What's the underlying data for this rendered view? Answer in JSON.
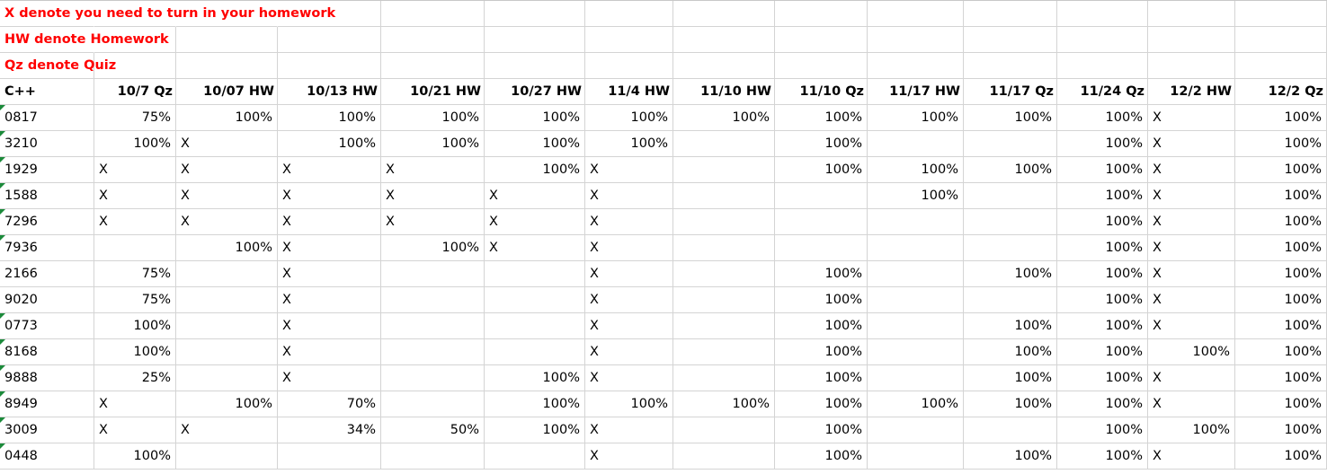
{
  "notes": [
    "X denote you need to turn in your homework",
    "HW denote Homework",
    "Qz denote Quiz"
  ],
  "header": [
    "C++",
    "10/7 Qz",
    "10/07 HW",
    "10/13 HW",
    "10/21 HW",
    "10/27 HW",
    "11/4 HW",
    "11/10 HW",
    "11/10 Qz",
    "11/17 HW",
    "11/17 Qz",
    "11/24 Qz",
    "12/2 HW",
    "12/2 Qz",
    ""
  ],
  "rows": [
    [
      "0817",
      "75%",
      "100%",
      "100%",
      "100%",
      "100%",
      "100%",
      "100%",
      "100%",
      "100%",
      "100%",
      "100%",
      "X",
      "100%"
    ],
    [
      "3210",
      "100%",
      "X",
      "100%",
      "100%",
      "100%",
      "100%",
      "",
      "100%",
      "",
      "",
      "100%",
      "X",
      "100%"
    ],
    [
      "1929",
      "X",
      "X",
      "X",
      "X",
      "100%",
      "X",
      "",
      "100%",
      "100%",
      "100%",
      "100%",
      "X",
      "100%"
    ],
    [
      "1588",
      "X",
      "X",
      "X",
      "X",
      "X",
      "X",
      "",
      "",
      "100%",
      "",
      "100%",
      "X",
      "100%"
    ],
    [
      "7296",
      "X",
      "X",
      "X",
      "X",
      "X",
      "X",
      "",
      "",
      "",
      "",
      "100%",
      "X",
      "100%"
    ],
    [
      "7936",
      "",
      "100%",
      "X",
      "100%",
      "X",
      "X",
      "",
      "",
      "",
      "",
      "100%",
      "X",
      "100%"
    ],
    [
      "2166",
      "75%",
      "",
      "X",
      "",
      "",
      "X",
      "",
      "100%",
      "",
      "100%",
      "100%",
      "X",
      "100%"
    ],
    [
      "9020",
      "75%",
      "",
      "X",
      "",
      "",
      "X",
      "",
      "100%",
      "",
      "",
      "100%",
      "X",
      "100%"
    ],
    [
      "0773",
      "100%",
      "",
      "X",
      "",
      "",
      "X",
      "",
      "100%",
      "",
      "100%",
      "100%",
      "X",
      "100%"
    ],
    [
      "8168",
      "100%",
      "",
      "X",
      "",
      "",
      "X",
      "",
      "100%",
      "",
      "100%",
      "100%",
      "100%",
      "100%"
    ],
    [
      "9888",
      "25%",
      "",
      "X",
      "",
      "100%",
      "X",
      "",
      "100%",
      "",
      "100%",
      "100%",
      "X",
      "100%"
    ],
    [
      "8949",
      "X",
      "100%",
      "70%",
      "",
      "100%",
      "100%",
      "100%",
      "100%",
      "100%",
      "100%",
      "100%",
      "X",
      "100%"
    ],
    [
      "3009",
      "X",
      "X",
      "34%",
      "50%",
      "100%",
      "X",
      "",
      "100%",
      "",
      "",
      "100%",
      "100%",
      "100%"
    ],
    [
      "0448",
      "100%",
      "",
      "",
      "",
      "",
      "X",
      "",
      "100%",
      "",
      "100%",
      "100%",
      "X",
      "100%"
    ]
  ]
}
